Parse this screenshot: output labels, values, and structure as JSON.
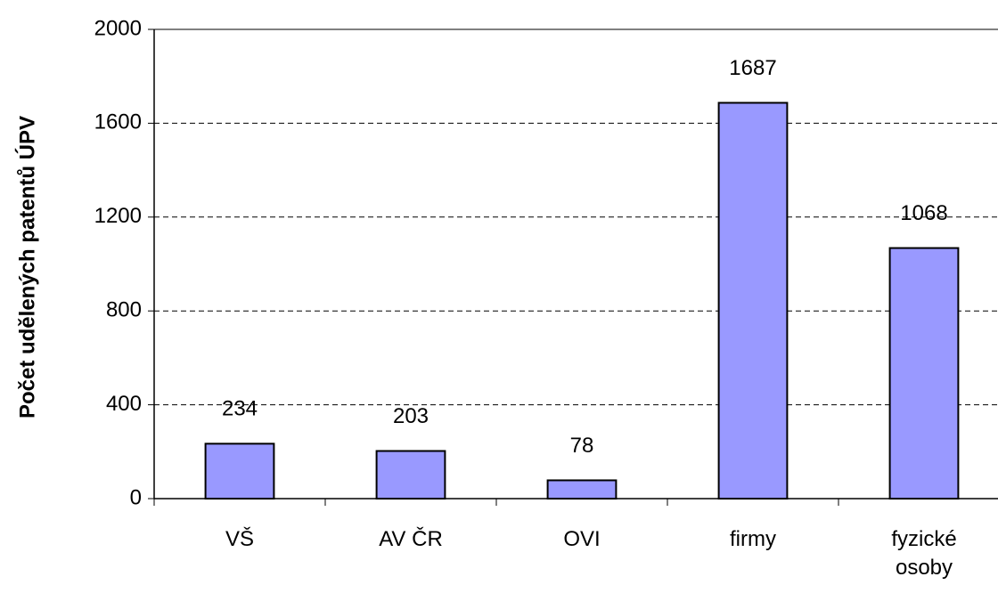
{
  "chart_data": {
    "type": "bar",
    "y_axis_label": "Počet udělených patentů ÚPV",
    "categories": [
      "VŠ",
      "AV ČR",
      "OVI",
      "firmy",
      "fyzické osoby"
    ],
    "values": [
      234,
      203,
      78,
      1687,
      1068
    ],
    "color": "#9999ff",
    "ylim": [
      0,
      2000
    ],
    "yticks": [
      0,
      400,
      800,
      1200,
      1600,
      2000
    ],
    "grid": true
  }
}
